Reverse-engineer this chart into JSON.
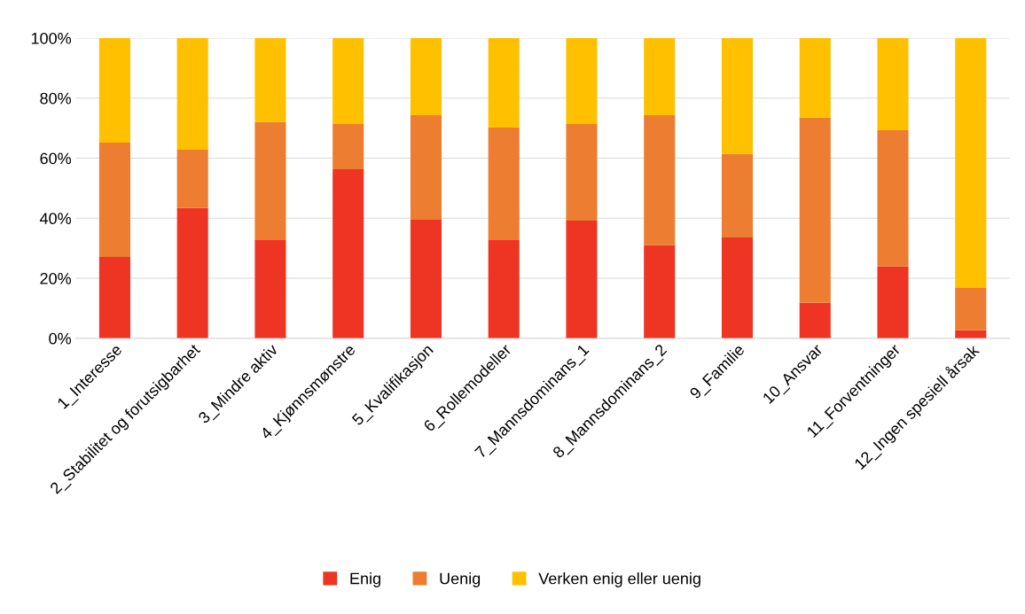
{
  "chart_data": {
    "type": "bar",
    "stacked": true,
    "categories": [
      "1_Interesse",
      "2_Stabilitet og forutsigbarhet",
      "3_Mindre aktiv",
      "4_Kjønnsmønstre",
      "5_Kvalifikasjon",
      "6_Rollemodeller",
      "7_Mannsdominans_1",
      "8_Mannsdominans_2",
      "9_Familie",
      "10_Ansvar",
      "11_Forventninger",
      "12_Ingen spesiell årsak"
    ],
    "series": [
      {
        "name": "Enig",
        "color": "#ee3524",
        "values": [
          27.1,
          43.4,
          32.7,
          56.3,
          39.5,
          32.7,
          39.2,
          31.0,
          33.6,
          11.8,
          23.9,
          2.7
        ]
      },
      {
        "name": "Uenig",
        "color": "#ed7d31",
        "values": [
          38.1,
          19.4,
          39.3,
          15.1,
          34.8,
          37.5,
          32.2,
          43.3,
          27.8,
          61.7,
          45.4,
          14.1
        ]
      },
      {
        "name": "Verken enig eller uenig",
        "color": "#ffc000",
        "values": [
          34.8,
          37.2,
          28.0,
          28.6,
          25.7,
          29.8,
          28.6,
          25.7,
          38.6,
          26.5,
          30.7,
          83.2
        ]
      }
    ],
    "ylim": [
      0,
      100
    ],
    "yticks": [
      {
        "value": 0,
        "label": "0%"
      },
      {
        "value": 20,
        "label": "20%"
      },
      {
        "value": 40,
        "label": "40%"
      },
      {
        "value": 60,
        "label": "60%"
      },
      {
        "value": 80,
        "label": "80%"
      },
      {
        "value": 100,
        "label": "100%"
      }
    ],
    "grid": "y",
    "legend": "bottom"
  }
}
